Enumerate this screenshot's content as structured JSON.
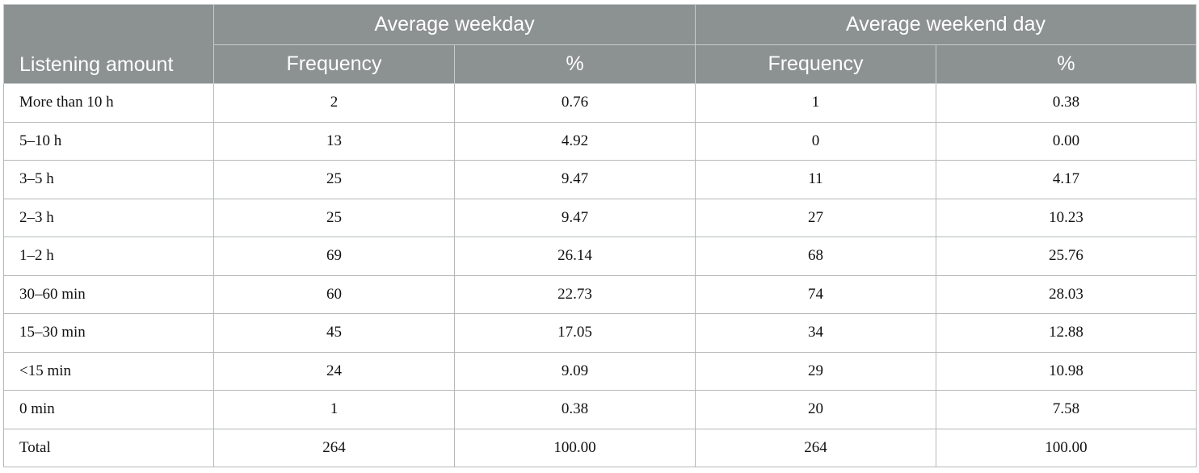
{
  "table": {
    "stub_header": "Listening amount",
    "groups": [
      {
        "label": "Average weekday"
      },
      {
        "label": "Average weekend day"
      }
    ],
    "subheaders": [
      "Frequency",
      "%",
      "Frequency",
      "%"
    ],
    "rows": [
      {
        "label": "More than 10 h",
        "cells": [
          "2",
          "0.76",
          "1",
          "0.38"
        ]
      },
      {
        "label": "5–10 h",
        "cells": [
          "13",
          "4.92",
          "0",
          "0.00"
        ]
      },
      {
        "label": "3–5 h",
        "cells": [
          "25",
          "9.47",
          "11",
          "4.17"
        ]
      },
      {
        "label": "2–3 h",
        "cells": [
          "25",
          "9.47",
          "27",
          "10.23"
        ]
      },
      {
        "label": "1–2 h",
        "cells": [
          "69",
          "26.14",
          "68",
          "25.76"
        ]
      },
      {
        "label": "30–60 min",
        "cells": [
          "60",
          "22.73",
          "74",
          "28.03"
        ]
      },
      {
        "label": "15–30 min",
        "cells": [
          "45",
          "17.05",
          "34",
          "12.88"
        ]
      },
      {
        "label": "<15 min",
        "cells": [
          "24",
          "9.09",
          "29",
          "10.98"
        ]
      },
      {
        "label": "0 min",
        "cells": [
          "1",
          "0.38",
          "20",
          "7.58"
        ]
      },
      {
        "label": "Total",
        "cells": [
          "264",
          "100.00",
          "264",
          "100.00"
        ]
      }
    ]
  }
}
